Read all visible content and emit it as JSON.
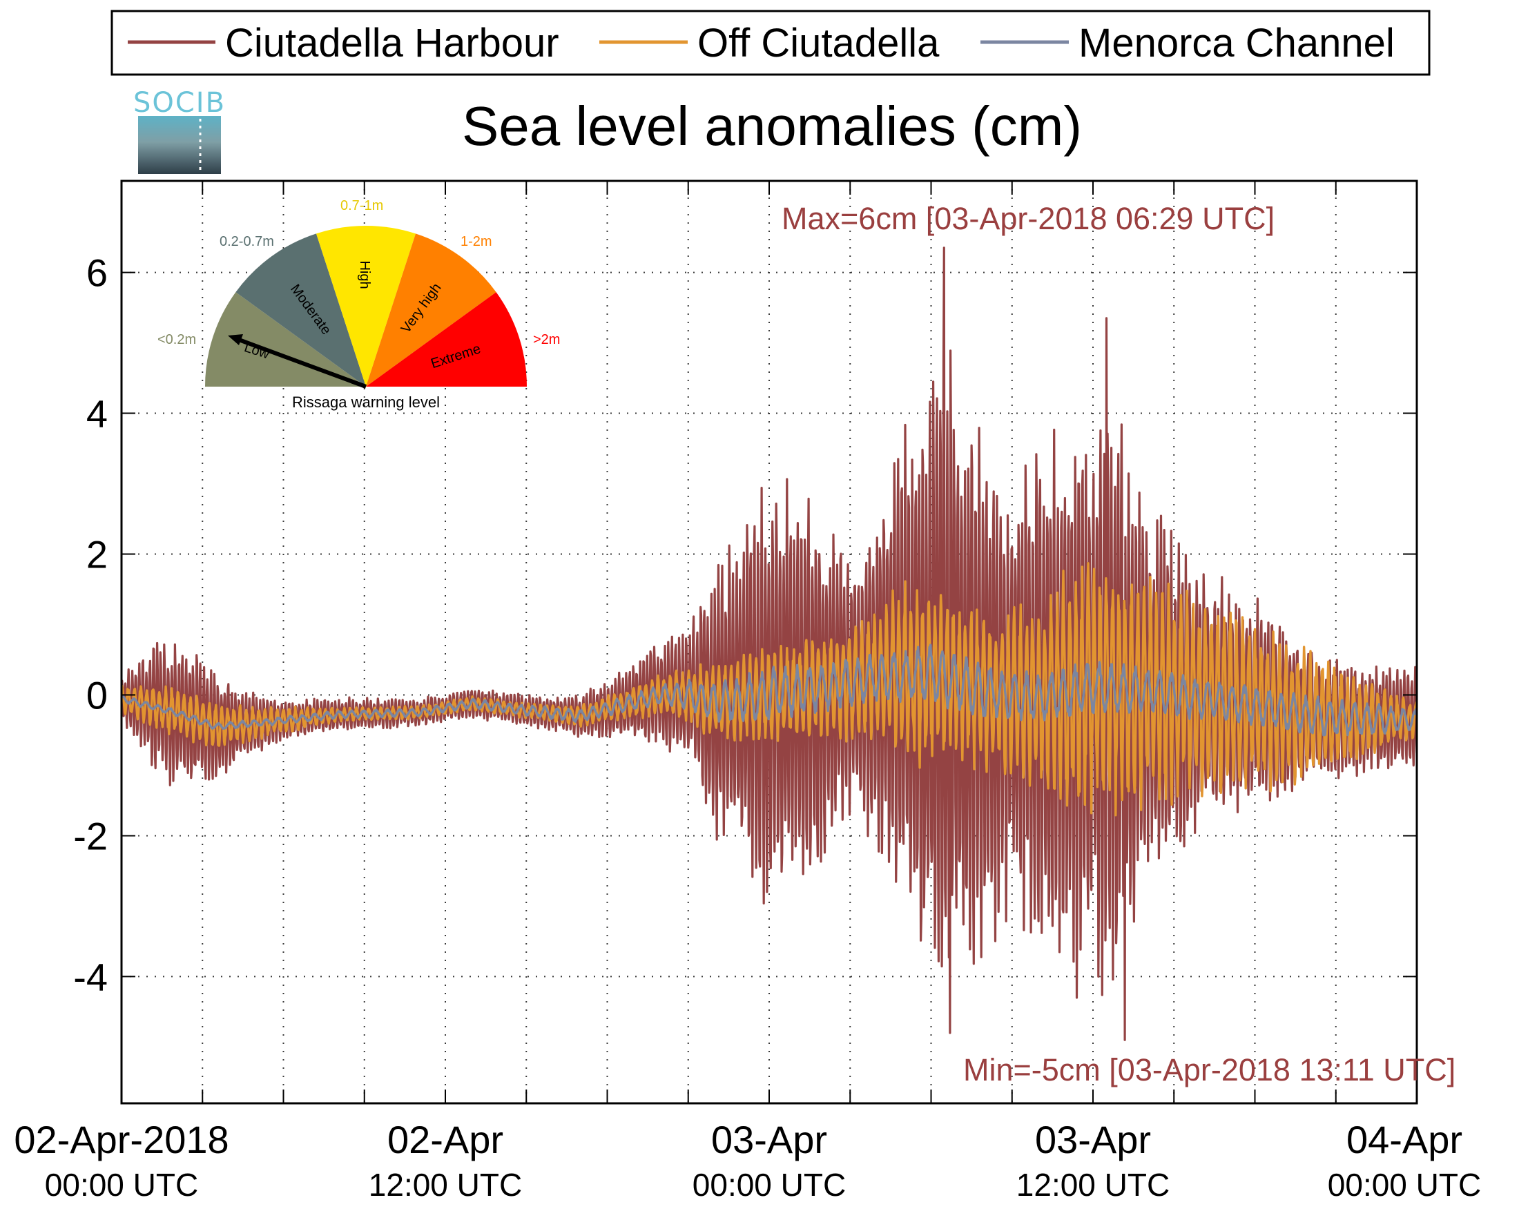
{
  "title": "Sea level anomalies (cm)",
  "logo_text": "SOCIB",
  "annotations": {
    "max": "Max=6cm [03-Apr-2018 06:29 UTC]",
    "min": "Min=-5cm [03-Apr-2018 13:11 UTC]"
  },
  "gauge": {
    "caption": "Rissaga warning level",
    "needle_level": "Low",
    "sectors": [
      {
        "name": "Low",
        "range": "<0.2m",
        "color": "#848b66"
      },
      {
        "name": "Moderate",
        "range": "0.2-0.7m",
        "color": "#5a7070"
      },
      {
        "name": "High",
        "range": "0.7-1m",
        "color": "#ffe600"
      },
      {
        "name": "Very high",
        "range": "1-2m",
        "color": "#ff8000"
      },
      {
        "name": "Extreme",
        "range": ">2m",
        "color": "#ff0000"
      }
    ]
  },
  "chart_data": {
    "type": "line",
    "title": "Sea level anomalies (cm)",
    "xlabel": "",
    "ylabel": "",
    "x_unit": "hours since 02-Apr-2018 00:00 UTC",
    "xlim": [
      0,
      48
    ],
    "ylim": [
      -5.8,
      7.3
    ],
    "y_ticks": [
      -4,
      -2,
      0,
      2,
      4,
      6
    ],
    "y_tick_labels": [
      "-4",
      "-2",
      "0",
      "2",
      "4",
      "6"
    ],
    "x_tick_hours": [
      0,
      12,
      24,
      36,
      48
    ],
    "x_tick_labels": [
      {
        "line1": "02-Apr-2018",
        "line2": "00:00 UTC"
      },
      {
        "line1": "02-Apr",
        "line2": "12:00 UTC"
      },
      {
        "line1": "03-Apr",
        "line2": "00:00 UTC"
      },
      {
        "line1": "03-Apr",
        "line2": "12:00 UTC"
      },
      {
        "line1": "04-Apr",
        "line2": "00:00 UTC"
      }
    ],
    "grid": true,
    "legend_position": "top",
    "series": [
      {
        "name": "Ciutadella Harbour",
        "color": "#944343",
        "envelope": [
          [
            0,
            0.3
          ],
          [
            1.5,
            1.1
          ],
          [
            3,
            1.0
          ],
          [
            4.5,
            0.5
          ],
          [
            6,
            0.3
          ],
          [
            8,
            0.25
          ],
          [
            12,
            0.2
          ],
          [
            16,
            0.25
          ],
          [
            18,
            0.4
          ],
          [
            20,
            0.8
          ],
          [
            21,
            1.0
          ],
          [
            22,
            2.0
          ],
          [
            23,
            2.6
          ],
          [
            24,
            3.2
          ],
          [
            25,
            3.0
          ],
          [
            26,
            2.5
          ],
          [
            27,
            2.0
          ],
          [
            28,
            2.6
          ],
          [
            29,
            3.6
          ],
          [
            30,
            4.8
          ],
          [
            30.5,
            5.6
          ],
          [
            31,
            4.5
          ],
          [
            32,
            3.8
          ],
          [
            33,
            3.2
          ],
          [
            34,
            3.8
          ],
          [
            35,
            4.0
          ],
          [
            36,
            4.2
          ],
          [
            36.5,
            4.8
          ],
          [
            37,
            4.0
          ],
          [
            38,
            2.8
          ],
          [
            39,
            2.4
          ],
          [
            40,
            2.0
          ],
          [
            41,
            1.8
          ],
          [
            42,
            1.6
          ],
          [
            43,
            1.3
          ],
          [
            44,
            1.0
          ],
          [
            45,
            0.9
          ],
          [
            46,
            0.8
          ],
          [
            47,
            0.8
          ],
          [
            48,
            0.8
          ]
        ],
        "peaks": [
          [
            30.48,
            6.35
          ],
          [
            30.7,
            -4.8
          ],
          [
            36.5,
            5.35
          ],
          [
            37.18,
            -4.9
          ],
          [
            36.2,
            -4.0
          ],
          [
            35.4,
            -4.3
          ]
        ]
      },
      {
        "name": "Off Ciutadella",
        "color": "#e29530",
        "envelope": [
          [
            0,
            0.2
          ],
          [
            1.5,
            0.35
          ],
          [
            3,
            0.35
          ],
          [
            5,
            0.25
          ],
          [
            8,
            0.1
          ],
          [
            12,
            0.1
          ],
          [
            16,
            0.12
          ],
          [
            18,
            0.2
          ],
          [
            20,
            0.3
          ],
          [
            22,
            0.55
          ],
          [
            24,
            0.7
          ],
          [
            26,
            0.75
          ],
          [
            28,
            1.0
          ],
          [
            29,
            1.4
          ],
          [
            30,
            1.3
          ],
          [
            31,
            1.1
          ],
          [
            32,
            1.2
          ],
          [
            33,
            1.3
          ],
          [
            34,
            1.4
          ],
          [
            35,
            1.8
          ],
          [
            36,
            1.9
          ],
          [
            37,
            1.9
          ],
          [
            38,
            1.7
          ],
          [
            39,
            1.6
          ],
          [
            40,
            1.5
          ],
          [
            41,
            1.4
          ],
          [
            42,
            1.3
          ],
          [
            43,
            1.1
          ],
          [
            44,
            1.0
          ],
          [
            45,
            0.8
          ],
          [
            46,
            0.6
          ],
          [
            47,
            0.4
          ],
          [
            48,
            0.3
          ]
        ]
      },
      {
        "name": "Menorca Channel",
        "color": "#7b86a1",
        "envelope": [
          [
            0,
            0.05
          ],
          [
            4,
            0.05
          ],
          [
            12,
            0.06
          ],
          [
            18,
            0.1
          ],
          [
            20,
            0.15
          ],
          [
            22,
            0.3
          ],
          [
            24,
            0.4
          ],
          [
            26,
            0.35
          ],
          [
            28,
            0.35
          ],
          [
            30,
            0.45
          ],
          [
            32,
            0.4
          ],
          [
            34,
            0.35
          ],
          [
            36,
            0.4
          ],
          [
            38,
            0.35
          ],
          [
            40,
            0.3
          ],
          [
            42,
            0.3
          ],
          [
            44,
            0.3
          ],
          [
            46,
            0.25
          ],
          [
            48,
            0.15
          ]
        ]
      }
    ],
    "trend": [
      [
        0,
        -0.05
      ],
      [
        2,
        -0.25
      ],
      [
        3.5,
        -0.45
      ],
      [
        5,
        -0.4
      ],
      [
        8,
        -0.28
      ],
      [
        11,
        -0.25
      ],
      [
        13,
        -0.12
      ],
      [
        15,
        -0.22
      ],
      [
        17,
        -0.3
      ],
      [
        19,
        -0.1
      ],
      [
        20,
        0.0
      ],
      [
        21,
        0.0
      ],
      [
        22,
        -0.1
      ],
      [
        24,
        0.0
      ],
      [
        26,
        0.1
      ],
      [
        28,
        0.25
      ],
      [
        30,
        0.3
      ],
      [
        32,
        0.05
      ],
      [
        34,
        -0.05
      ],
      [
        36,
        0.1
      ],
      [
        38,
        0.05
      ],
      [
        40,
        -0.05
      ],
      [
        42,
        -0.15
      ],
      [
        44,
        -0.3
      ],
      [
        46,
        -0.35
      ],
      [
        48,
        -0.35
      ]
    ]
  },
  "colors": {
    "axis": "#000000",
    "grid": "#3a3a3a"
  }
}
